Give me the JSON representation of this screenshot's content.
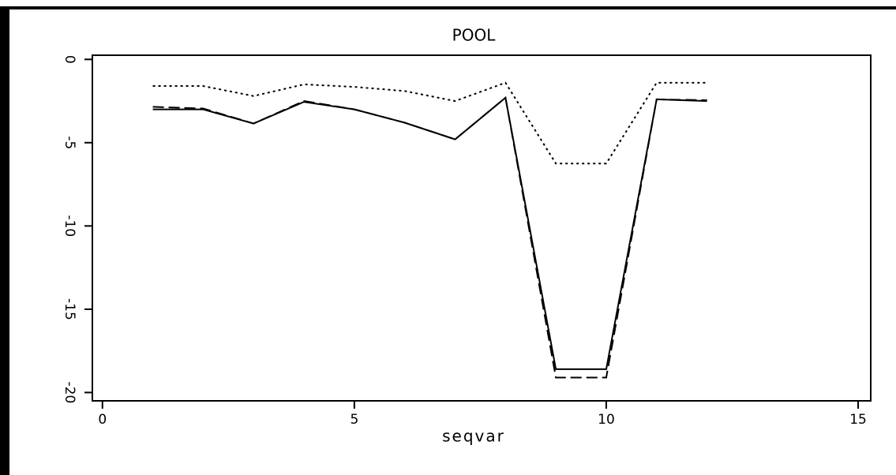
{
  "chart_data": {
    "type": "line",
    "title": "POOL",
    "x_label": "seqvar",
    "x": [
      1,
      2,
      3,
      4,
      5,
      6,
      7,
      8,
      9,
      10,
      11,
      12
    ],
    "series": [
      {
        "color": "#000000",
        "style": "solid",
        "values": [
          -3.0,
          -3.0,
          -3.85,
          -2.55,
          -3.0,
          -3.8,
          -4.8,
          -2.3,
          -18.6,
          -18.6,
          -2.4,
          -2.5
        ]
      },
      {
        "color": "#000000",
        "style": "dashed",
        "values": [
          -2.85,
          -2.95,
          -3.85,
          -2.5,
          -3.0,
          -3.8,
          -4.8,
          -2.3,
          -19.1,
          -19.1,
          -2.4,
          -2.45
        ]
      },
      {
        "color": "#000000",
        "style": "dotted",
        "values": [
          -1.6,
          -1.6,
          -2.2,
          -1.5,
          -1.65,
          -1.9,
          -2.5,
          -1.4,
          -6.25,
          -6.25,
          -1.4,
          -1.4
        ]
      }
    ],
    "xlim": [
      -0.2,
      15.25
    ],
    "xticks": [
      0,
      5,
      10,
      15
    ],
    "ylim": [
      -20.5,
      0.25
    ],
    "yticks": [
      0,
      -5,
      -10,
      -15,
      -20
    ]
  }
}
